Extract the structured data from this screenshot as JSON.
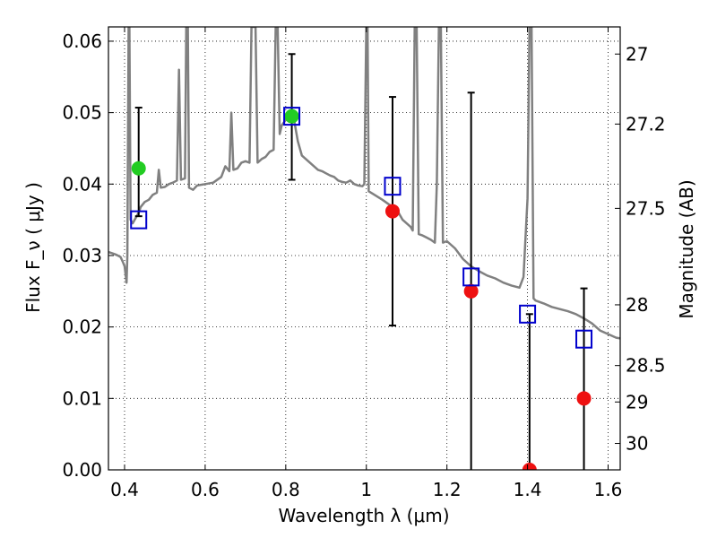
{
  "chart_data": {
    "type": "scatter",
    "xlabel": "Wavelength  λ (μm)",
    "ylabel": "Flux  F_ν  ( μJy )",
    "ylabel_right": "Magnitude (AB)",
    "xlim": [
      0.36,
      1.63
    ],
    "ylim": [
      0.0,
      0.062
    ],
    "xticks": [
      0.4,
      0.6,
      0.8,
      1.0,
      1.2,
      1.4,
      1.6
    ],
    "xtick_labels": [
      "0.4",
      "0.6",
      "0.8",
      "1",
      "1.2",
      "1.4",
      "1.6"
    ],
    "yticks": [
      0.0,
      0.01,
      0.02,
      0.03,
      0.04,
      0.05,
      0.06
    ],
    "ytick_labels": [
      "0.00",
      "0.01",
      "0.02",
      "0.03",
      "0.04",
      "0.05",
      "0.06"
    ],
    "right_ticks": [
      {
        "label": "27",
        "flux": 0.0582
      },
      {
        "label": "27.2",
        "flux": 0.0484
      },
      {
        "label": "27.5",
        "flux": 0.0366
      },
      {
        "label": "28",
        "flux": 0.0231
      },
      {
        "label": "28.5",
        "flux": 0.0146
      },
      {
        "label": "29",
        "flux": 0.0095
      },
      {
        "label": "30",
        "flux": 0.0037
      }
    ],
    "grid": true,
    "colors": {
      "model": "#808080",
      "detection": "#22cc22",
      "observed": "#ee1111",
      "template_box": "#0000cc",
      "errorbar": "#000000"
    },
    "model_sed": {
      "name": "",
      "points": [
        [
          0.36,
          0.0305
        ],
        [
          0.37,
          0.0303
        ],
        [
          0.38,
          0.0301
        ],
        [
          0.39,
          0.0298
        ],
        [
          0.395,
          0.0292
        ],
        [
          0.4,
          0.0285
        ],
        [
          0.405,
          0.0262
        ],
        [
          0.407,
          0.03
        ],
        [
          0.41,
          0.062
        ],
        [
          0.412,
          0.062
        ],
        [
          0.415,
          0.035
        ],
        [
          0.42,
          0.0345
        ],
        [
          0.43,
          0.0355
        ],
        [
          0.435,
          0.036
        ],
        [
          0.44,
          0.0368
        ],
        [
          0.45,
          0.0375
        ],
        [
          0.46,
          0.0378
        ],
        [
          0.47,
          0.0385
        ],
        [
          0.48,
          0.0388
        ],
        [
          0.485,
          0.042
        ],
        [
          0.49,
          0.0395
        ],
        [
          0.5,
          0.0396
        ],
        [
          0.51,
          0.04
        ],
        [
          0.52,
          0.0402
        ],
        [
          0.53,
          0.0405
        ],
        [
          0.535,
          0.056
        ],
        [
          0.54,
          0.0406
        ],
        [
          0.55,
          0.0408
        ],
        [
          0.553,
          0.062
        ],
        [
          0.557,
          0.062
        ],
        [
          0.56,
          0.0395
        ],
        [
          0.57,
          0.0392
        ],
        [
          0.58,
          0.0398
        ],
        [
          0.6,
          0.04
        ],
        [
          0.62,
          0.0402
        ],
        [
          0.64,
          0.041
        ],
        [
          0.65,
          0.0425
        ],
        [
          0.66,
          0.0418
        ],
        [
          0.665,
          0.05
        ],
        [
          0.67,
          0.042
        ],
        [
          0.68,
          0.0422
        ],
        [
          0.69,
          0.043
        ],
        [
          0.7,
          0.0432
        ],
        [
          0.71,
          0.043
        ],
        [
          0.715,
          0.062
        ],
        [
          0.725,
          0.062
        ],
        [
          0.73,
          0.043
        ],
        [
          0.74,
          0.0435
        ],
        [
          0.75,
          0.0438
        ],
        [
          0.76,
          0.0445
        ],
        [
          0.77,
          0.0448
        ],
        [
          0.775,
          0.062
        ],
        [
          0.78,
          0.062
        ],
        [
          0.785,
          0.047
        ],
        [
          0.79,
          0.0482
        ],
        [
          0.8,
          0.049
        ],
        [
          0.81,
          0.0495
        ],
        [
          0.82,
          0.0492
        ],
        [
          0.83,
          0.046
        ],
        [
          0.84,
          0.044
        ],
        [
          0.85,
          0.0435
        ],
        [
          0.86,
          0.043
        ],
        [
          0.87,
          0.0425
        ],
        [
          0.88,
          0.042
        ],
        [
          0.89,
          0.0418
        ],
        [
          0.9,
          0.0415
        ],
        [
          0.91,
          0.0412
        ],
        [
          0.92,
          0.041
        ],
        [
          0.93,
          0.0405
        ],
        [
          0.94,
          0.0403
        ],
        [
          0.95,
          0.0402
        ],
        [
          0.96,
          0.0405
        ],
        [
          0.97,
          0.04
        ],
        [
          0.98,
          0.0398
        ],
        [
          0.99,
          0.0397
        ],
        [
          0.995,
          0.04
        ],
        [
          1.0,
          0.062
        ],
        [
          1.003,
          0.062
        ],
        [
          1.006,
          0.039
        ],
        [
          1.02,
          0.0385
        ],
        [
          1.04,
          0.0378
        ],
        [
          1.06,
          0.037
        ],
        [
          1.08,
          0.036
        ],
        [
          1.09,
          0.035
        ],
        [
          1.1,
          0.0345
        ],
        [
          1.11,
          0.034
        ],
        [
          1.115,
          0.0335
        ],
        [
          1.12,
          0.062
        ],
        [
          1.125,
          0.062
        ],
        [
          1.13,
          0.033
        ],
        [
          1.14,
          0.0328
        ],
        [
          1.15,
          0.0325
        ],
        [
          1.16,
          0.0322
        ],
        [
          1.17,
          0.0318
        ],
        [
          1.175,
          0.04
        ],
        [
          1.18,
          0.062
        ],
        [
          1.185,
          0.062
        ],
        [
          1.19,
          0.0318
        ],
        [
          1.2,
          0.032
        ],
        [
          1.22,
          0.031
        ],
        [
          1.24,
          0.0295
        ],
        [
          1.26,
          0.0285
        ],
        [
          1.28,
          0.0278
        ],
        [
          1.3,
          0.0272
        ],
        [
          1.32,
          0.0268
        ],
        [
          1.34,
          0.0262
        ],
        [
          1.36,
          0.0258
        ],
        [
          1.38,
          0.0255
        ],
        [
          1.39,
          0.027
        ],
        [
          1.4,
          0.038
        ],
        [
          1.405,
          0.062
        ],
        [
          1.41,
          0.062
        ],
        [
          1.415,
          0.024
        ],
        [
          1.42,
          0.0237
        ],
        [
          1.44,
          0.0233
        ],
        [
          1.46,
          0.0228
        ],
        [
          1.48,
          0.0225
        ],
        [
          1.5,
          0.0222
        ],
        [
          1.52,
          0.0218
        ],
        [
          1.54,
          0.0212
        ],
        [
          1.56,
          0.0205
        ],
        [
          1.58,
          0.0195
        ],
        [
          1.6,
          0.019
        ],
        [
          1.62,
          0.0185
        ],
        [
          1.63,
          0.0184
        ]
      ]
    },
    "template_points": [
      {
        "x": 0.435,
        "y": 0.035
      },
      {
        "x": 0.815,
        "y": 0.0495
      },
      {
        "x": 1.065,
        "y": 0.0397
      },
      {
        "x": 1.26,
        "y": 0.027
      },
      {
        "x": 1.4,
        "y": 0.0218
      },
      {
        "x": 1.54,
        "y": 0.0183
      }
    ],
    "observed_points": [
      {
        "x": 0.435,
        "y": 0.0422,
        "yerr_low": 0.0355,
        "yerr_high": 0.0507,
        "color": "detection"
      },
      {
        "x": 0.815,
        "y": 0.0495,
        "yerr_low": 0.0406,
        "yerr_high": 0.0582,
        "color": "detection"
      },
      {
        "x": 1.065,
        "y": 0.0362,
        "yerr_low": 0.0202,
        "yerr_high": 0.0522,
        "color": "observed"
      },
      {
        "x": 1.26,
        "y": 0.025,
        "yerr_low": 0.0,
        "yerr_high": 0.0528,
        "color": "observed"
      },
      {
        "x": 1.405,
        "y": 0.0,
        "yerr_low": 0.0,
        "yerr_high": 0.0218,
        "color": "observed"
      },
      {
        "x": 1.54,
        "y": 0.01,
        "yerr_low": 0.0,
        "yerr_high": 0.0254,
        "color": "observed"
      }
    ]
  }
}
